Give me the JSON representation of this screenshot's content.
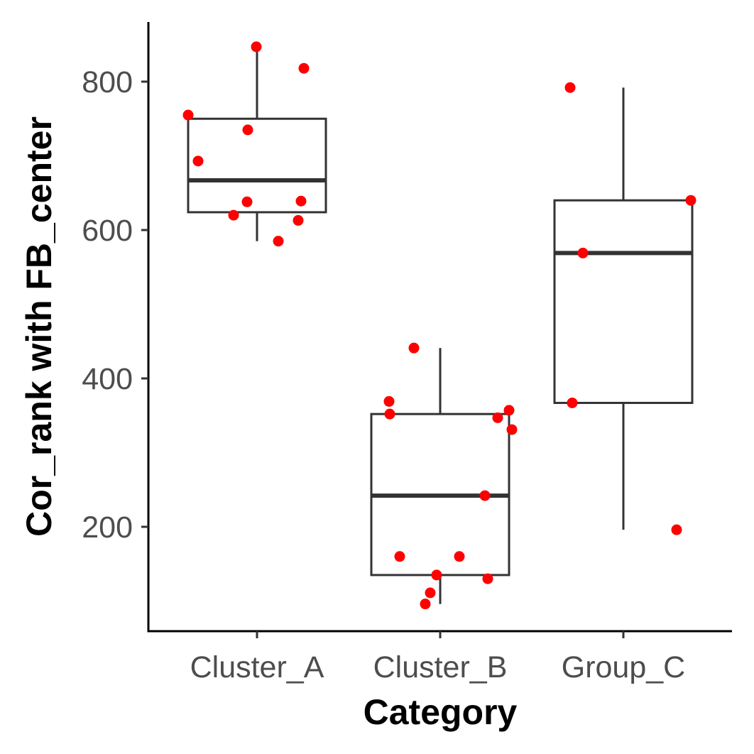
{
  "chart_data": {
    "type": "box",
    "xlabel": "Category",
    "ylabel": "Cor_rank with FB_center",
    "categories": [
      "Cluster_A",
      "Cluster_B",
      "Group_C"
    ],
    "ylim": [
      60,
      880
    ],
    "y_ticks": [
      200,
      400,
      600,
      800
    ],
    "grid": false,
    "legend": "none",
    "colors": {
      "box_line": "#333333",
      "points": "#ff0000",
      "axis": "#000000"
    },
    "boxes": [
      {
        "category": "Cluster_A",
        "whisker_low": 585,
        "q1": 624,
        "median": 667,
        "q3": 750,
        "whisker_high": 847
      },
      {
        "category": "Cluster_B",
        "whisker_low": 96,
        "q1": 135,
        "median": 242,
        "q3": 352,
        "whisker_high": 441
      },
      {
        "category": "Group_C",
        "whisker_low": 196,
        "q1": 367,
        "median": 569,
        "q3": 640,
        "whisker_high": 792
      }
    ],
    "points": [
      {
        "category": "Cluster_A",
        "values": [
          847,
          818,
          755,
          735,
          693,
          639,
          638,
          620,
          613,
          585
        ]
      },
      {
        "category": "Cluster_B",
        "values": [
          441,
          369,
          357,
          352,
          347,
          331,
          242,
          160,
          160,
          135,
          130,
          111,
          96
        ]
      },
      {
        "category": "Group_C",
        "values": [
          792,
          640,
          569,
          367,
          196
        ]
      }
    ]
  }
}
